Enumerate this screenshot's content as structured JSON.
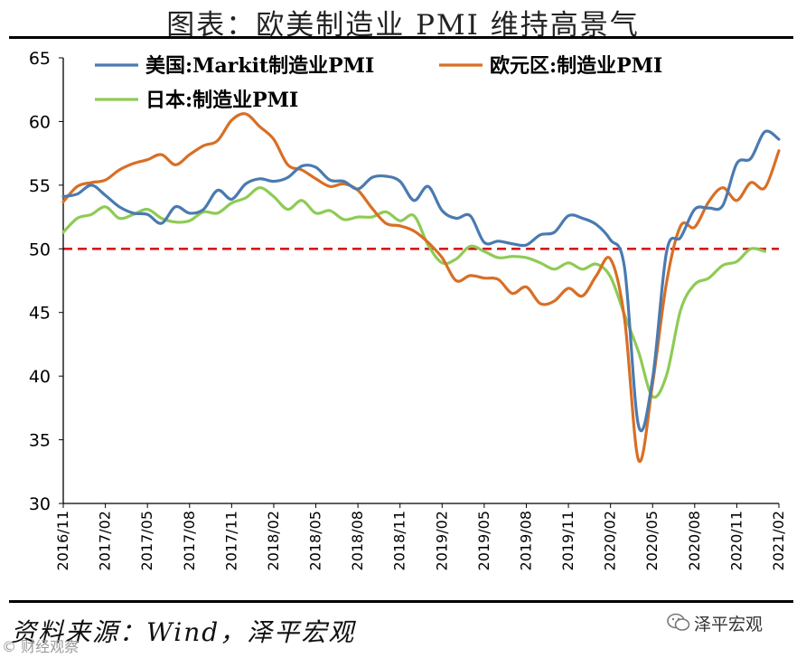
{
  "title": "图表：欧美制造业 PMI 维持高景气",
  "source": "资料来源：Wind，泽平宏观",
  "brand": "泽平宏观",
  "watermark": "© 财经观察",
  "chart_data": {
    "type": "line",
    "title": "图表：欧美制造业 PMI 维持高景气",
    "ylim": [
      30,
      65
    ],
    "yticks": [
      30,
      35,
      40,
      45,
      50,
      55,
      60,
      65
    ],
    "reference_line": {
      "value": 50,
      "color": "#d7191c",
      "style": "dashed"
    },
    "xticks": [
      "2016/11",
      "2017/02",
      "2017/05",
      "2017/08",
      "2017/11",
      "2018/02",
      "2018/05",
      "2018/08",
      "2018/11",
      "2019/02",
      "2019/05",
      "2019/08",
      "2019/11",
      "2020/02",
      "2020/05",
      "2020/08",
      "2020/11",
      "2021/02"
    ],
    "categories": [
      "2016/11",
      "2016/12",
      "2017/01",
      "2017/02",
      "2017/03",
      "2017/04",
      "2017/05",
      "2017/06",
      "2017/07",
      "2017/08",
      "2017/09",
      "2017/10",
      "2017/11",
      "2017/12",
      "2018/01",
      "2018/02",
      "2018/03",
      "2018/04",
      "2018/05",
      "2018/06",
      "2018/07",
      "2018/08",
      "2018/09",
      "2018/10",
      "2018/11",
      "2018/12",
      "2019/01",
      "2019/02",
      "2019/03",
      "2019/04",
      "2019/05",
      "2019/06",
      "2019/07",
      "2019/08",
      "2019/09",
      "2019/10",
      "2019/11",
      "2019/12",
      "2020/01",
      "2020/02",
      "2020/03",
      "2020/04",
      "2020/05",
      "2020/06",
      "2020/07",
      "2020/08",
      "2020/09",
      "2020/10",
      "2020/11",
      "2020/12",
      "2021/01",
      "2021/02"
    ],
    "series": [
      {
        "name": "美国:Markit制造业PMI",
        "color": "#4a7ab0",
        "values": [
          54.1,
          54.3,
          55.0,
          54.2,
          53.3,
          52.8,
          52.7,
          52.0,
          53.3,
          52.8,
          53.1,
          54.6,
          53.9,
          55.1,
          55.5,
          55.3,
          55.6,
          56.5,
          56.4,
          55.4,
          55.3,
          54.7,
          55.6,
          55.7,
          55.3,
          53.8,
          54.9,
          53.0,
          52.4,
          52.6,
          50.5,
          50.6,
          50.4,
          50.3,
          51.1,
          51.3,
          52.6,
          52.4,
          51.9,
          50.7,
          48.5,
          36.1,
          39.8,
          49.8,
          50.9,
          53.1,
          53.2,
          53.4,
          56.7,
          57.1,
          59.2,
          58.6
        ]
      },
      {
        "name": "欧元区:制造业PMI",
        "color": "#d86f25",
        "values": [
          53.7,
          54.9,
          55.2,
          55.4,
          56.2,
          56.7,
          57.0,
          57.4,
          56.6,
          57.4,
          58.1,
          58.5,
          60.1,
          60.6,
          59.6,
          58.6,
          56.6,
          56.2,
          55.5,
          54.9,
          55.1,
          54.6,
          53.2,
          52.0,
          51.8,
          51.4,
          50.5,
          49.3,
          47.5,
          47.9,
          47.7,
          47.6,
          46.5,
          47.0,
          45.7,
          45.9,
          46.9,
          46.3,
          47.9,
          49.2,
          44.5,
          33.4,
          39.4,
          47.4,
          51.8,
          51.7,
          53.7,
          54.8,
          53.8,
          55.2,
          54.8,
          57.7
        ]
      },
      {
        "name": "日本:制造业PMI",
        "color": "#8ecb55",
        "values": [
          51.3,
          52.4,
          52.7,
          53.3,
          52.4,
          52.7,
          53.1,
          52.4,
          52.1,
          52.2,
          52.9,
          52.8,
          53.6,
          54.0,
          54.8,
          54.1,
          53.1,
          53.8,
          52.8,
          53.0,
          52.3,
          52.5,
          52.5,
          52.9,
          52.2,
          52.6,
          50.3,
          48.9,
          49.2,
          50.2,
          49.8,
          49.3,
          49.4,
          49.3,
          48.9,
          48.4,
          48.9,
          48.4,
          48.8,
          47.8,
          44.8,
          41.9,
          38.4,
          40.1,
          45.2,
          47.2,
          47.7,
          48.7,
          49.0,
          50.0,
          49.8,
          null
        ]
      }
    ]
  }
}
